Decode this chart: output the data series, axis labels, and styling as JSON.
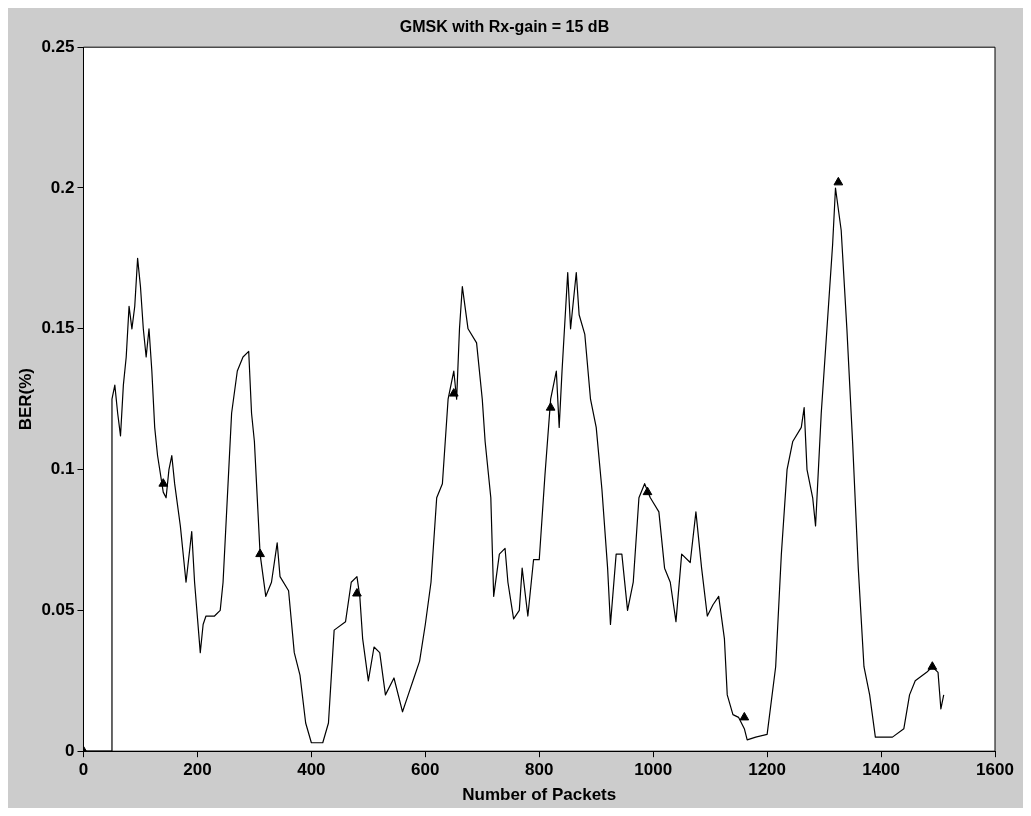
{
  "chart_data": {
    "type": "line",
    "title": "GMSK with Rx-gain = 15 dB",
    "xlabel": "Number of Packets",
    "ylabel": "BER(%)",
    "xlim": [
      0,
      1600
    ],
    "xticks": [
      0,
      200,
      400,
      600,
      800,
      1000,
      1200,
      1400,
      1600
    ],
    "ylim": [
      0,
      0.25
    ],
    "yticks": [
      0,
      0.05,
      0.1,
      0.15,
      0.2,
      0.25
    ],
    "grid": false,
    "legend": false,
    "series": [
      {
        "type": "line",
        "color": "#000000",
        "marker": "none",
        "line_style": "solid",
        "x": [
          0,
          50,
          50,
          55,
          60,
          65,
          70,
          75,
          80,
          85,
          90,
          95,
          100,
          105,
          110,
          115,
          120,
          125,
          130,
          140,
          145,
          150,
          155,
          160,
          170,
          180,
          190,
          195,
          205,
          210,
          215,
          230,
          240,
          245,
          255,
          260,
          270,
          280,
          290,
          295,
          300,
          310,
          320,
          330,
          340,
          345,
          360,
          370,
          380,
          390,
          400,
          420,
          430,
          440,
          460,
          470,
          480,
          485,
          490,
          500,
          510,
          520,
          530,
          545,
          560,
          570,
          580,
          590,
          600,
          610,
          620,
          630,
          640,
          650,
          655,
          660,
          665,
          675,
          690,
          700,
          705,
          715,
          720,
          730,
          740,
          745,
          755,
          765,
          770,
          780,
          790,
          800,
          810,
          820,
          830,
          835,
          840,
          850,
          855,
          865,
          870,
          880,
          890,
          900,
          910,
          920,
          925,
          935,
          945,
          955,
          965,
          975,
          985,
          995,
          1010,
          1020,
          1030,
          1040,
          1050,
          1065,
          1075,
          1085,
          1095,
          1105,
          1115,
          1125,
          1130,
          1140,
          1150,
          1160,
          1165,
          1180,
          1200,
          1215,
          1225,
          1235,
          1245,
          1260,
          1265,
          1270,
          1280,
          1285,
          1295,
          1305,
          1315,
          1320,
          1330,
          1340,
          1350,
          1360,
          1370,
          1380,
          1390,
          1420,
          1440,
          1450,
          1460,
          1480,
          1490,
          1500,
          1505,
          1510
        ],
        "values": [
          0,
          0,
          0.125,
          0.13,
          0.12,
          0.112,
          0.13,
          0.14,
          0.158,
          0.15,
          0.158,
          0.175,
          0.165,
          0.15,
          0.14,
          0.15,
          0.135,
          0.115,
          0.105,
          0.092,
          0.09,
          0.1,
          0.105,
          0.095,
          0.08,
          0.06,
          0.078,
          0.06,
          0.035,
          0.045,
          0.048,
          0.048,
          0.05,
          0.06,
          0.1,
          0.12,
          0.135,
          0.14,
          0.142,
          0.12,
          0.11,
          0.07,
          0.055,
          0.06,
          0.074,
          0.062,
          0.057,
          0.035,
          0.027,
          0.01,
          0.003,
          0.003,
          0.01,
          0.043,
          0.046,
          0.06,
          0.062,
          0.055,
          0.04,
          0.025,
          0.037,
          0.035,
          0.02,
          0.026,
          0.014,
          0.02,
          0.026,
          0.032,
          0.045,
          0.06,
          0.09,
          0.095,
          0.125,
          0.135,
          0.125,
          0.15,
          0.165,
          0.15,
          0.145,
          0.125,
          0.11,
          0.09,
          0.055,
          0.07,
          0.072,
          0.06,
          0.047,
          0.05,
          0.065,
          0.048,
          0.068,
          0.068,
          0.098,
          0.125,
          0.135,
          0.115,
          0.135,
          0.17,
          0.15,
          0.17,
          0.155,
          0.148,
          0.125,
          0.115,
          0.093,
          0.065,
          0.045,
          0.07,
          0.07,
          0.05,
          0.06,
          0.09,
          0.095,
          0.09,
          0.085,
          0.065,
          0.06,
          0.046,
          0.07,
          0.067,
          0.085,
          0.065,
          0.048,
          0.052,
          0.055,
          0.04,
          0.02,
          0.013,
          0.012,
          0.008,
          0.004,
          0.005,
          0.006,
          0.03,
          0.07,
          0.1,
          0.11,
          0.115,
          0.122,
          0.1,
          0.09,
          0.08,
          0.12,
          0.15,
          0.18,
          0.2,
          0.185,
          0.15,
          0.11,
          0.065,
          0.03,
          0.02,
          0.005,
          0.005,
          0.008,
          0.02,
          0.025,
          0.028,
          0.03,
          0.028,
          0.015,
          0.02
        ]
      },
      {
        "type": "scatter",
        "color": "#000000",
        "marker": "triangle",
        "x": [
          0,
          140,
          310,
          480,
          650,
          820,
          990,
          1160,
          1325,
          1490
        ],
        "values": [
          0,
          0.095,
          0.07,
          0.056,
          0.127,
          0.122,
          0.092,
          0.012,
          0.202,
          0.03
        ]
      }
    ]
  }
}
